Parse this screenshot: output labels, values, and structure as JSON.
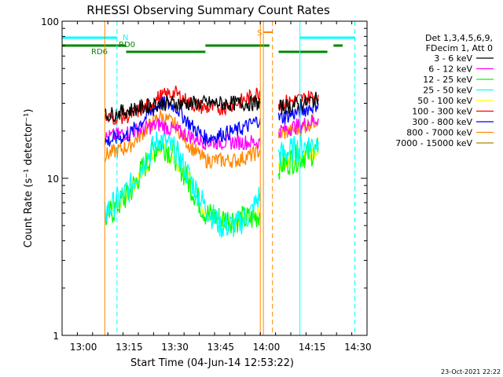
{
  "chart_data": {
    "type": "line",
    "title": "RHESSI Observing Summary Count Rates",
    "xlabel": "Start Time (04-Jun-14 12:53:22)",
    "ylabel": "Count Rate (s⁻¹ detector⁻¹)",
    "y_scale": "log",
    "ylim": [
      1,
      100
    ],
    "xlim_minutes": [
      "12:53",
      "14:33"
    ],
    "y_ticks": [
      "1",
      "10",
      "100"
    ],
    "x_ticks": [
      "13:00",
      "13:15",
      "13:30",
      "13:45",
      "14:00",
      "14:15",
      "14:30"
    ],
    "timestamp": "23-Oct-2021 22:22",
    "legend_header": [
      "Det 1,3,4,5,6,9,",
      "FDecim 1, Att 0"
    ],
    "legend_placement": "right",
    "series": [
      {
        "name": "3 - 6 keV",
        "color": "#000000",
        "segments": [
          {
            "t": [
              "13:07",
              "13:25",
              "13:40",
              "13:50",
              "13:55",
              "13:58"
            ],
            "v": [
              25,
              30,
              30,
              30,
              30,
              30
            ]
          },
          {
            "t": [
              "14:04",
              "14:12",
              "14:17"
            ],
            "v": [
              28,
              30,
              32
            ]
          }
        ]
      },
      {
        "name": "6 - 12 keV",
        "color": "#ff00ff",
        "segments": [
          {
            "t": [
              "13:07",
              "13:25",
              "13:40",
              "13:50",
              "13:55",
              "13:58"
            ],
            "v": [
              18,
              22,
              17,
              17,
              17,
              17
            ]
          },
          {
            "t": [
              "14:04",
              "14:12",
              "14:17"
            ],
            "v": [
              20,
              22,
              24
            ]
          }
        ]
      },
      {
        "name": "12 - 25 keV",
        "color": "#00ff00",
        "segments": [
          {
            "t": [
              "13:07",
              "13:15",
              "13:20",
              "13:25",
              "13:30",
              "13:35",
              "13:40",
              "13:45",
              "13:50",
              "13:55",
              "13:58"
            ],
            "v": [
              5.5,
              8,
              12,
              17,
              14,
              9,
              6,
              5.5,
              5.5,
              5.5,
              6
            ]
          },
          {
            "t": [
              "14:04",
              "14:12",
              "14:17"
            ],
            "v": [
              12,
              14,
              15
            ]
          }
        ]
      },
      {
        "name": "25 - 50 keV",
        "color": "#00ffff",
        "segments": [
          {
            "t": [
              "13:07",
              "13:15",
              "13:20",
              "13:25",
              "13:30",
              "13:35",
              "13:40",
              "13:45",
              "13:50",
              "13:55",
              "13:58"
            ],
            "v": [
              6,
              8.5,
              13,
              18,
              15,
              10,
              6.5,
              5,
              5,
              6,
              8
            ]
          },
          {
            "t": [
              "14:04",
              "14:12",
              "14:17"
            ],
            "v": [
              14,
              16,
              17
            ]
          }
        ]
      },
      {
        "name": "50 - 100 keV",
        "color": "#ffff00",
        "segments": [
          {
            "t": [
              "13:07",
              "13:15",
              "13:25",
              "13:35",
              "13:40",
              "13:50",
              "13:58"
            ],
            "v": [
              6,
              8,
              16,
              10,
              6,
              5,
              6
            ]
          },
          {
            "t": [
              "14:04",
              "14:12",
              "14:17"
            ],
            "v": [
              12,
              14,
              15
            ]
          }
        ]
      },
      {
        "name": "100 - 300 keV",
        "color": "#ff0000",
        "segments": [
          {
            "t": [
              "13:07",
              "13:15",
              "13:20",
              "13:25",
              "13:30",
              "13:35",
              "13:40",
              "13:45",
              "13:50",
              "13:55",
              "13:58"
            ],
            "v": [
              24,
              25,
              28,
              33,
              35,
              30,
              28,
              28,
              30,
              33,
              36
            ]
          },
          {
            "t": [
              "14:04",
              "14:12",
              "14:17"
            ],
            "v": [
              30,
              32,
              34
            ]
          }
        ]
      },
      {
        "name": "300 - 800 keV",
        "color": "#0000ff",
        "segments": [
          {
            "t": [
              "13:07",
              "13:15",
              "13:20",
              "13:25",
              "13:30",
              "13:35",
              "13:40",
              "13:45",
              "13:50",
              "13:55",
              "13:58"
            ],
            "v": [
              17,
              19,
              24,
              30,
              29,
              22,
              18,
              19,
              20,
              22,
              24
            ]
          },
          {
            "t": [
              "14:04",
              "14:12",
              "14:17"
            ],
            "v": [
              24,
              27,
              30
            ]
          }
        ]
      },
      {
        "name": "800 - 7000 keV",
        "color": "#ff8800",
        "segments": [
          {
            "t": [
              "13:07",
              "13:15",
              "13:20",
              "13:25",
              "13:30",
              "13:35",
              "13:40",
              "13:45",
              "13:50",
              "13:55",
              "13:58"
            ],
            "v": [
              14,
              16,
              20,
              25,
              22,
              16,
              13,
              13,
              13,
              14,
              15
            ]
          },
          {
            "t": [
              "14:04",
              "14:12",
              "14:17"
            ],
            "v": [
              19,
              21,
              24
            ]
          }
        ]
      },
      {
        "name": "7000 - 15000 keV",
        "color": "#aa8800",
        "segments": []
      }
    ],
    "rd6": {
      "label": "RD6",
      "color": "#008800",
      "segments": [
        [
          "12:53",
          "13:14"
        ],
        [
          "13:14",
          "13:40"
        ],
        [
          "13:40",
          "14:01"
        ],
        [
          "14:04",
          "14:20"
        ],
        [
          "14:22",
          "14:25"
        ]
      ]
    },
    "rd0": {
      "label": "RD0",
      "color": "#008800"
    },
    "night": {
      "label": "N",
      "color": "#00ffff",
      "segments": [
        [
          "12:53",
          "13:11"
        ],
        [
          "14:11",
          "14:29"
        ]
      ]
    },
    "saa": {
      "label": "S",
      "color": "#ff8800",
      "segments": [
        [
          "13:59",
          "14:02"
        ]
      ]
    },
    "vlines": [
      {
        "t": "13:11",
        "color": "#00ffff",
        "style": "dashed"
      },
      {
        "t": "14:29",
        "color": "#00ffff",
        "style": "dashed"
      },
      {
        "t": "14:11",
        "color": "#00ffff",
        "style": "solid"
      },
      {
        "t": "13:07",
        "color": "#ff8800",
        "style": "solid"
      },
      {
        "t": "13:58",
        "color": "#ff8800",
        "style": "solid"
      },
      {
        "t": "13:59",
        "color": "#ff8800",
        "style": "solid"
      },
      {
        "t": "14:02",
        "color": "#ff8800",
        "style": "dashed"
      }
    ]
  }
}
